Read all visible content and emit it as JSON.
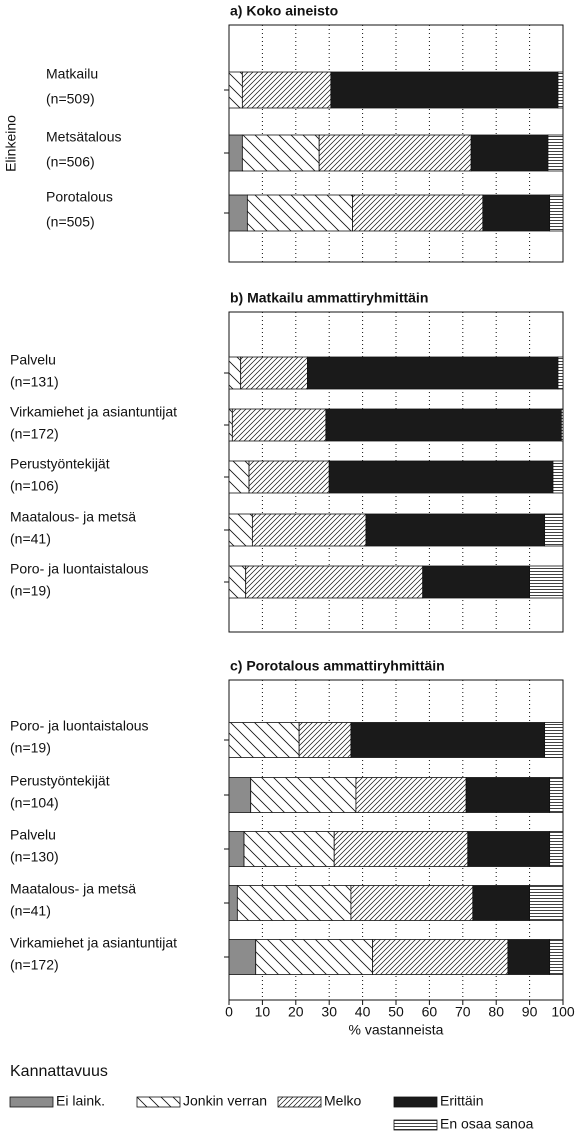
{
  "chart_data": [
    {
      "type": "bar",
      "orientation": "horizontal",
      "stacked": true,
      "title": "a) Koko aineisto",
      "ylabel": "Elinkeino",
      "categories": [
        [
          "Matkailu",
          "(n=509)"
        ],
        [
          "Metsätalous",
          "(n=506)"
        ],
        [
          "Porotalous",
          "(n=505)"
        ]
      ],
      "series": [
        {
          "values": [
            0,
            4,
            5.5
          ]
        },
        {
          "values": [
            4,
            23,
            31.5
          ]
        },
        {
          "values": [
            26.5,
            45.5,
            39
          ]
        },
        {
          "values": [
            68,
            23,
            20
          ]
        },
        {
          "values": [
            1.5,
            4.5,
            4
          ]
        }
      ]
    },
    {
      "type": "bar",
      "orientation": "horizontal",
      "stacked": true,
      "title": "b) Matkailu ammattiryhmittäin",
      "categories": [
        [
          "Palvelu",
          "(n=131)"
        ],
        [
          "Virkamiehet ja asiantuntijat",
          "(n=172)"
        ],
        [
          "Perustyöntekijät",
          "(n=106)"
        ],
        [
          "Maatalous- ja metsä",
          "(n=41)"
        ],
        [
          "Poro- ja luontaistalous",
          "(n=19)"
        ]
      ],
      "series": [
        {
          "values": [
            0,
            0,
            0,
            0,
            0
          ]
        },
        {
          "values": [
            3.5,
            1,
            6,
            7,
            5
          ]
        },
        {
          "values": [
            20,
            28,
            24,
            34,
            53
          ]
        },
        {
          "values": [
            75,
            70.5,
            67,
            53.5,
            32
          ]
        },
        {
          "values": [
            1.5,
            0.5,
            3,
            5.5,
            10
          ]
        }
      ]
    },
    {
      "type": "bar",
      "orientation": "horizontal",
      "stacked": true,
      "title": "c) Porotalous ammattiryhmittäin",
      "categories": [
        [
          "Poro- ja luontaistalous",
          "(n=19)"
        ],
        [
          "Perustyöntekijät",
          "(n=104)"
        ],
        [
          "Palvelu",
          "(n=130)"
        ],
        [
          "Maatalous- ja metsä",
          "(n=41)"
        ],
        [
          "Virkamiehet ja asiantuntijat",
          "(n=172)"
        ]
      ],
      "series": [
        {
          "name": "Ei laink.",
          "color": "#8c8c8c",
          "values": [
            0,
            6.5,
            4.5,
            2.5,
            8
          ]
        },
        {
          "name": "Jonkin verran",
          "color": "#ffffff",
          "hatch": "\\",
          "values": [
            21,
            31.5,
            27,
            34,
            35
          ]
        },
        {
          "name": "Melko",
          "color": "#ffffff",
          "hatch": "/",
          "values": [
            15.5,
            33,
            40,
            36.5,
            40.5
          ]
        },
        {
          "name": "Erittäin",
          "color": "#1a1a1a",
          "values": [
            58,
            25,
            24.5,
            17,
            12.5
          ]
        },
        {
          "name": "En osaa sanoa",
          "color": "#ffffff",
          "hatch": "-",
          "values": [
            5.5,
            4,
            4,
            10,
            4
          ]
        }
      ],
      "xlim": [
        0,
        100
      ],
      "xticks": [
        0,
        10,
        20,
        30,
        40,
        50,
        60,
        70,
        80,
        90,
        100
      ],
      "xlabel": "% vastanneista",
      "legend_title": "Kannattavuus",
      "grid": true
    }
  ]
}
